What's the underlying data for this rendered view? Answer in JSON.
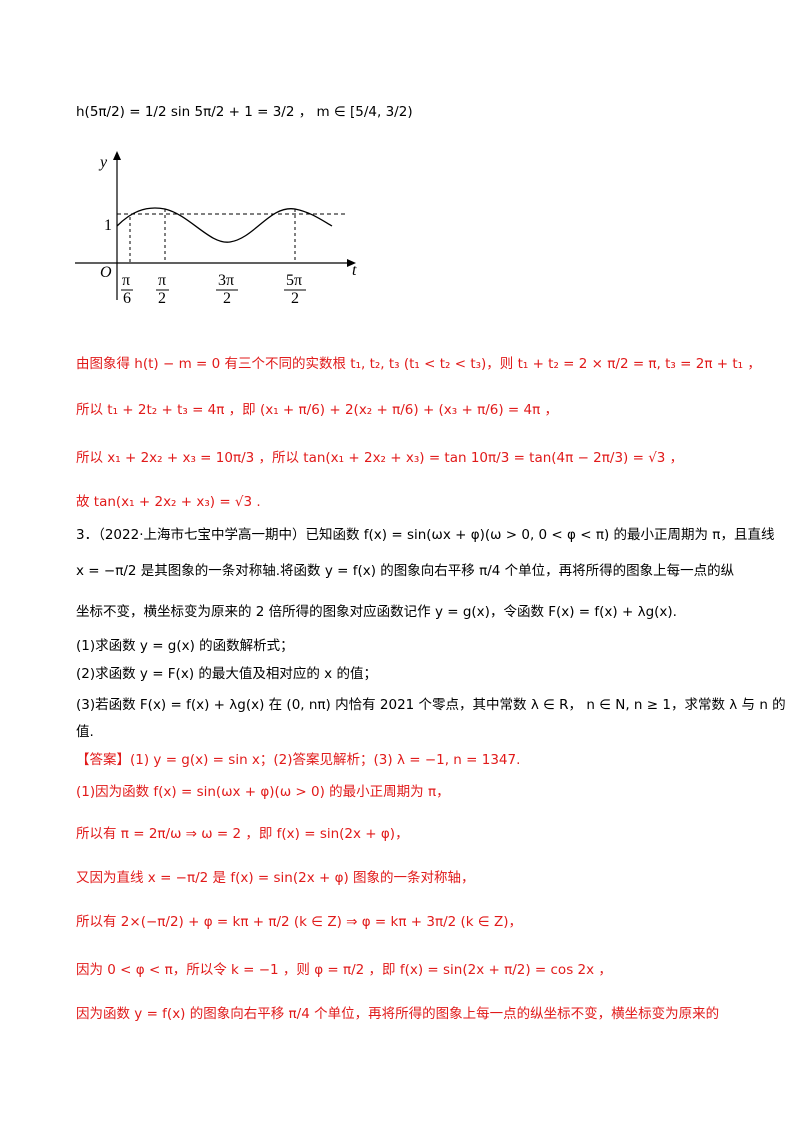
{
  "lines": {
    "l1": "h(5π/2) = 1/2 sin 5π/2 + 1 = 3/2 ，  m ∈ [5/4, 3/2)",
    "l2": "由图象得 h(t) − m = 0 有三个不同的实数根 t₁, t₂, t₃ (t₁ < t₂ < t₃)，则 t₁ + t₂ = 2 × π/2 = π, t₃ = 2π + t₁ ，",
    "l3": "所以 t₁ + 2t₂ + t₃ = 4π ，即 (x₁ + π/6) + 2(x₂ + π/6) + (x₃ + π/6) = 4π ，",
    "l4": "所以 x₁ + 2x₂ + x₃ = 10π/3 ，所以 tan(x₁ + 2x₂ + x₃) = tan 10π/3 = tan(4π − 2π/3) = √3 ，",
    "l5": "故 tan(x₁ + 2x₂ + x₃) = √3 .",
    "l6": "3．（2022·上海市七宝中学高一期中）已知函数 f(x) = sin(ωx + φ)(ω > 0, 0 < φ < π) 的最小正周期为 π，且直线",
    "l7": "x = −π/2 是其图象的一条对称轴.将函数 y = f(x) 的图象向右平移 π/4 个单位，再将所得的图象上每一点的纵",
    "l8": "坐标不变，横坐标变为原来的 2 倍所得的图象对应函数记作 y = g(x)，令函数 F(x) = f(x) + λg(x).",
    "l9": "(1)求函数 y = g(x) 的函数解析式；",
    "l10": "(2)求函数 y = F(x) 的最大值及相对应的 x 的值；",
    "l11": "(3)若函数 F(x) = f(x) + λg(x) 在 (0, nπ) 内恰有 2021 个零点，其中常数 λ ∈ R，  n ∈ N, n ≥ 1，求常数 λ 与 n 的",
    "l12": "值.",
    "l13": "【答案】(1) y = g(x) = sin x；(2)答案见解析；(3) λ = −1, n = 1347.",
    "l14": "(1)因为函数 f(x) = sin(ωx + φ)(ω > 0) 的最小正周期为 π，",
    "l15": "所以有 π = 2π/ω ⇒ ω = 2 ，即  f(x) = sin(2x + φ)，",
    "l16": "又因为直线 x = −π/2 是 f(x) = sin(2x + φ) 图象的一条对称轴，",
    "l17": "所以有 2×(−π/2) + φ = kπ + π/2 (k ∈ Z) ⇒ φ = kπ + 3π/2 (k ∈ Z)，",
    "l18": "因为 0 < φ < π，所以令 k = −1 ，则 φ = π/2 ，即 f(x) = sin(2x + π/2) = cos 2x ，",
    "l19": "因为函数 y = f(x) 的图象向右平移 π/4 个单位，再将所得的图象上每一点的纵坐标不变，横坐标变为原来的"
  },
  "graph": {
    "y_label": "y",
    "t_label": "t",
    "origin": "O",
    "one": "1",
    "ticks": [
      "π/6",
      "π/2",
      "3π/2",
      "5π/2"
    ]
  }
}
